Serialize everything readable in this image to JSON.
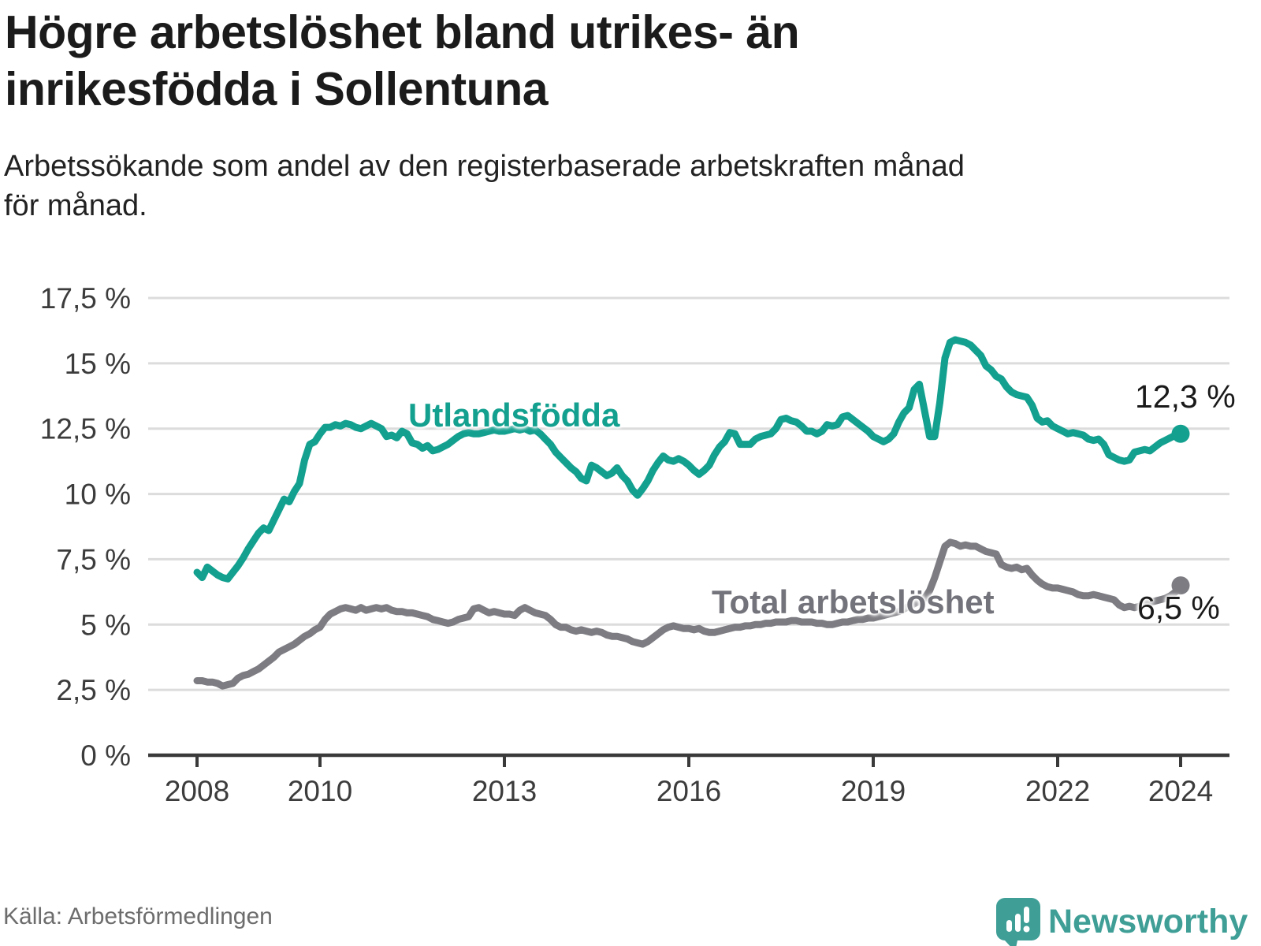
{
  "header": {
    "title": "Högre arbetslöshet bland utrikes- än inrikesfödda i Sollentuna",
    "subtitle": "Arbetssökande som andel av den registerbaserade arbetskraften månad för månad."
  },
  "footer": {
    "source": "Källa: Arbetsförmedlingen",
    "brand": "Newsworthy"
  },
  "colors": {
    "utlandsfodda": "#13a08f",
    "total": "#7c7c82",
    "grid": "#dcdcdc",
    "axis": "#3a3a3a",
    "annotation": "#1a1a1a",
    "brand_teal": "#3f9f97"
  },
  "chart_data": {
    "type": "line",
    "title": "Högre arbetslöshet bland utrikes- än inrikesfödda i Sollentuna",
    "xlabel": "",
    "ylabel": "Arbetssökande som andel av den registerbaserade arbetskraften",
    "grid": true,
    "grid_color": "#dcdcdc",
    "x_start": "2008-01",
    "x_end": "2024-01",
    "x_step_months": 1,
    "xlim": [
      2007.2,
      2024.8
    ],
    "ylim": [
      0,
      18.2
    ],
    "y_unit": "%",
    "y_ticks": [
      {
        "label": "0 %",
        "value": 0
      },
      {
        "label": "2,5 %",
        "value": 2.5
      },
      {
        "label": "5 %",
        "value": 5
      },
      {
        "label": "7,5 %",
        "value": 7.5
      },
      {
        "label": "10 %",
        "value": 10
      },
      {
        "label": "12,5 %",
        "value": 12.5
      },
      {
        "label": "15 %",
        "value": 15
      },
      {
        "label": "17,5 %",
        "value": 17.5
      }
    ],
    "x_ticks": [
      {
        "label": "2008",
        "year": 2008
      },
      {
        "label": "2010",
        "year": 2010
      },
      {
        "label": "2013",
        "year": 2013
      },
      {
        "label": "2016",
        "year": 2016
      },
      {
        "label": "2019",
        "year": 2019
      },
      {
        "label": "2022",
        "year": 2022
      },
      {
        "label": "2024",
        "year": 2024
      }
    ],
    "series": [
      {
        "name": "Utlandsfödda",
        "color": "#13a08f",
        "end_label": "12,3 %",
        "end_value": 12.3,
        "values": [
          7.0,
          6.8,
          7.2,
          7.05,
          6.9,
          6.8,
          6.75,
          7.0,
          7.25,
          7.55,
          7.9,
          8.2,
          8.5,
          8.7,
          8.6,
          9.0,
          9.4,
          9.8,
          9.7,
          10.1,
          10.4,
          11.3,
          11.9,
          12.0,
          12.3,
          12.55,
          12.55,
          12.65,
          12.6,
          12.7,
          12.65,
          12.55,
          12.5,
          12.6,
          12.7,
          12.6,
          12.5,
          12.2,
          12.25,
          12.15,
          12.4,
          12.3,
          11.95,
          11.9,
          11.75,
          11.85,
          11.65,
          11.7,
          11.8,
          11.9,
          12.05,
          12.2,
          12.3,
          12.35,
          12.3,
          12.3,
          12.35,
          12.4,
          12.45,
          12.4,
          12.4,
          12.45,
          12.5,
          12.45,
          12.5,
          12.4,
          12.45,
          12.3,
          12.1,
          11.9,
          11.6,
          11.4,
          11.2,
          11.0,
          10.85,
          10.6,
          10.5,
          11.1,
          11.0,
          10.85,
          10.7,
          10.8,
          11.0,
          10.7,
          10.5,
          10.15,
          9.95,
          10.2,
          10.5,
          10.9,
          11.2,
          11.45,
          11.3,
          11.25,
          11.35,
          11.25,
          11.1,
          10.9,
          10.75,
          10.9,
          11.1,
          11.5,
          11.8,
          12.0,
          12.35,
          12.3,
          11.9,
          11.9,
          11.9,
          12.1,
          12.2,
          12.25,
          12.3,
          12.5,
          12.85,
          12.9,
          12.8,
          12.75,
          12.6,
          12.4,
          12.4,
          12.3,
          12.4,
          12.65,
          12.6,
          12.65,
          12.95,
          13.0,
          12.85,
          12.7,
          12.55,
          12.4,
          12.2,
          12.1,
          12.0,
          12.1,
          12.3,
          12.75,
          13.1,
          13.3,
          14.0,
          14.2,
          13.2,
          12.2,
          12.2,
          13.5,
          15.2,
          15.8,
          15.9,
          15.85,
          15.8,
          15.7,
          15.5,
          15.3,
          14.9,
          14.75,
          14.5,
          14.4,
          14.1,
          13.9,
          13.8,
          13.75,
          13.7,
          13.4,
          12.9,
          12.75,
          12.8,
          12.6,
          12.5,
          12.4,
          12.3,
          12.35,
          12.3,
          12.25,
          12.1,
          12.05,
          12.1,
          11.9,
          11.5,
          11.4,
          11.3,
          11.25,
          11.3,
          11.6,
          11.65,
          11.7,
          11.65,
          11.8,
          11.95,
          12.05,
          12.15,
          12.25,
          12.3
        ]
      },
      {
        "name": "Total arbetslöshet",
        "color": "#7c7c82",
        "end_label": "6,5 %",
        "end_value": 6.5,
        "values": [
          2.85,
          2.85,
          2.8,
          2.8,
          2.75,
          2.65,
          2.7,
          2.75,
          2.95,
          3.05,
          3.1,
          3.2,
          3.3,
          3.45,
          3.6,
          3.75,
          3.95,
          4.05,
          4.15,
          4.25,
          4.4,
          4.55,
          4.65,
          4.8,
          4.9,
          5.2,
          5.4,
          5.5,
          5.6,
          5.65,
          5.6,
          5.55,
          5.65,
          5.55,
          5.6,
          5.65,
          5.6,
          5.65,
          5.55,
          5.5,
          5.5,
          5.45,
          5.45,
          5.4,
          5.35,
          5.3,
          5.2,
          5.15,
          5.1,
          5.05,
          5.1,
          5.2,
          5.25,
          5.3,
          5.6,
          5.65,
          5.55,
          5.45,
          5.5,
          5.45,
          5.4,
          5.4,
          5.35,
          5.55,
          5.65,
          5.55,
          5.45,
          5.4,
          5.35,
          5.2,
          5.0,
          4.9,
          4.9,
          4.8,
          4.75,
          4.8,
          4.75,
          4.7,
          4.75,
          4.7,
          4.6,
          4.55,
          4.55,
          4.5,
          4.45,
          4.35,
          4.3,
          4.25,
          4.35,
          4.5,
          4.65,
          4.8,
          4.9,
          4.95,
          4.9,
          4.85,
          4.85,
          4.8,
          4.85,
          4.75,
          4.7,
          4.7,
          4.75,
          4.8,
          4.85,
          4.9,
          4.9,
          4.95,
          4.95,
          5.0,
          5.0,
          5.05,
          5.05,
          5.1,
          5.1,
          5.1,
          5.15,
          5.15,
          5.1,
          5.1,
          5.1,
          5.05,
          5.05,
          5.0,
          5.0,
          5.05,
          5.1,
          5.1,
          5.15,
          5.2,
          5.2,
          5.25,
          5.25,
          5.3,
          5.35,
          5.4,
          5.45,
          5.5,
          5.6,
          5.7,
          5.8,
          5.9,
          6.0,
          6.3,
          6.8,
          7.4,
          8.0,
          8.15,
          8.1,
          8.0,
          8.05,
          8.0,
          8.0,
          7.9,
          7.8,
          7.75,
          7.7,
          7.3,
          7.2,
          7.15,
          7.2,
          7.1,
          7.15,
          6.9,
          6.7,
          6.55,
          6.45,
          6.4,
          6.4,
          6.35,
          6.3,
          6.25,
          6.15,
          6.1,
          6.1,
          6.15,
          6.1,
          6.05,
          6.0,
          5.95,
          5.75,
          5.65,
          5.7,
          5.65,
          5.7,
          5.8,
          5.85,
          5.9,
          5.95,
          6.0,
          6.1,
          6.25,
          6.5
        ]
      }
    ]
  }
}
